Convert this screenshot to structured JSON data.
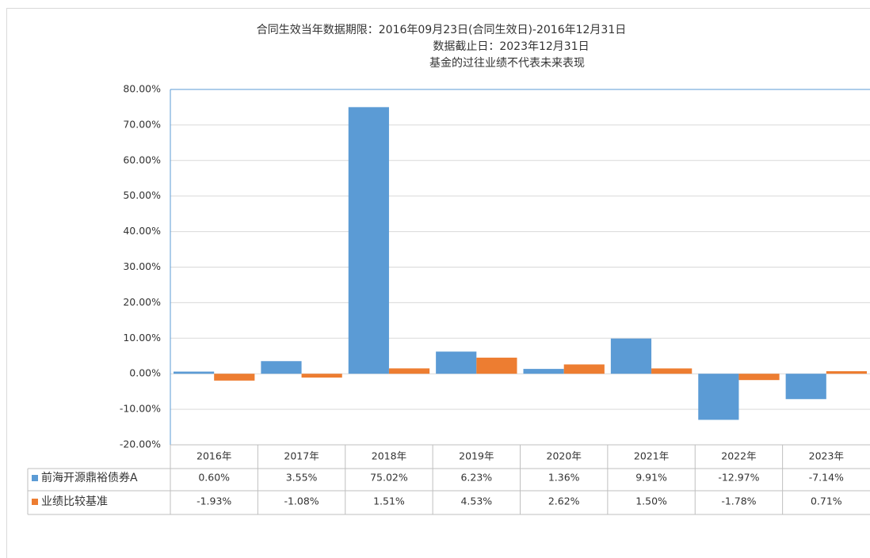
{
  "chart_data": {
    "type": "bar",
    "title_lines": [
      "合同生效当年数据期限：2016年09月23日(合同生效日)-2016年12月31日",
      "数据截止日：2023年12月31日",
      "基金的过往业绩不代表未来表现"
    ],
    "categories": [
      "2016年",
      "2017年",
      "2018年",
      "2019年",
      "2020年",
      "2021年",
      "2022年",
      "2023年"
    ],
    "series": [
      {
        "name": "前海开源鼎裕债券A",
        "color": "#5b9bd5",
        "values": [
          0.6,
          3.55,
          75.02,
          6.23,
          1.36,
          9.91,
          -12.97,
          -7.14
        ],
        "value_labels": [
          "0.60%",
          "3.55%",
          "75.02%",
          "6.23%",
          "1.36%",
          "9.91%",
          "-12.97%",
          "-7.14%"
        ]
      },
      {
        "name": "业绩比较基准",
        "color": "#ed7d31",
        "values": [
          -1.93,
          -1.08,
          1.51,
          4.53,
          2.62,
          1.5,
          -1.78,
          0.71
        ],
        "value_labels": [
          "-1.93%",
          "-1.08%",
          "1.51%",
          "4.53%",
          "2.62%",
          "1.50%",
          "-1.78%",
          "0.71%"
        ]
      }
    ],
    "ylim": [
      -20,
      80
    ],
    "yticks": [
      {
        "value": -20,
        "label": "-20.00%"
      },
      {
        "value": -10,
        "label": "-10.00%"
      },
      {
        "value": 0,
        "label": "0.00%"
      },
      {
        "value": 10,
        "label": "10.00%"
      },
      {
        "value": 20,
        "label": "20.00%"
      },
      {
        "value": 30,
        "label": "30.00%"
      },
      {
        "value": 40,
        "label": "40.00%"
      },
      {
        "value": 50,
        "label": "50.00%"
      },
      {
        "value": 60,
        "label": "60.00%"
      },
      {
        "value": 70,
        "label": "70.00%"
      },
      {
        "value": 80,
        "label": "80.00%"
      }
    ],
    "grid": true
  }
}
